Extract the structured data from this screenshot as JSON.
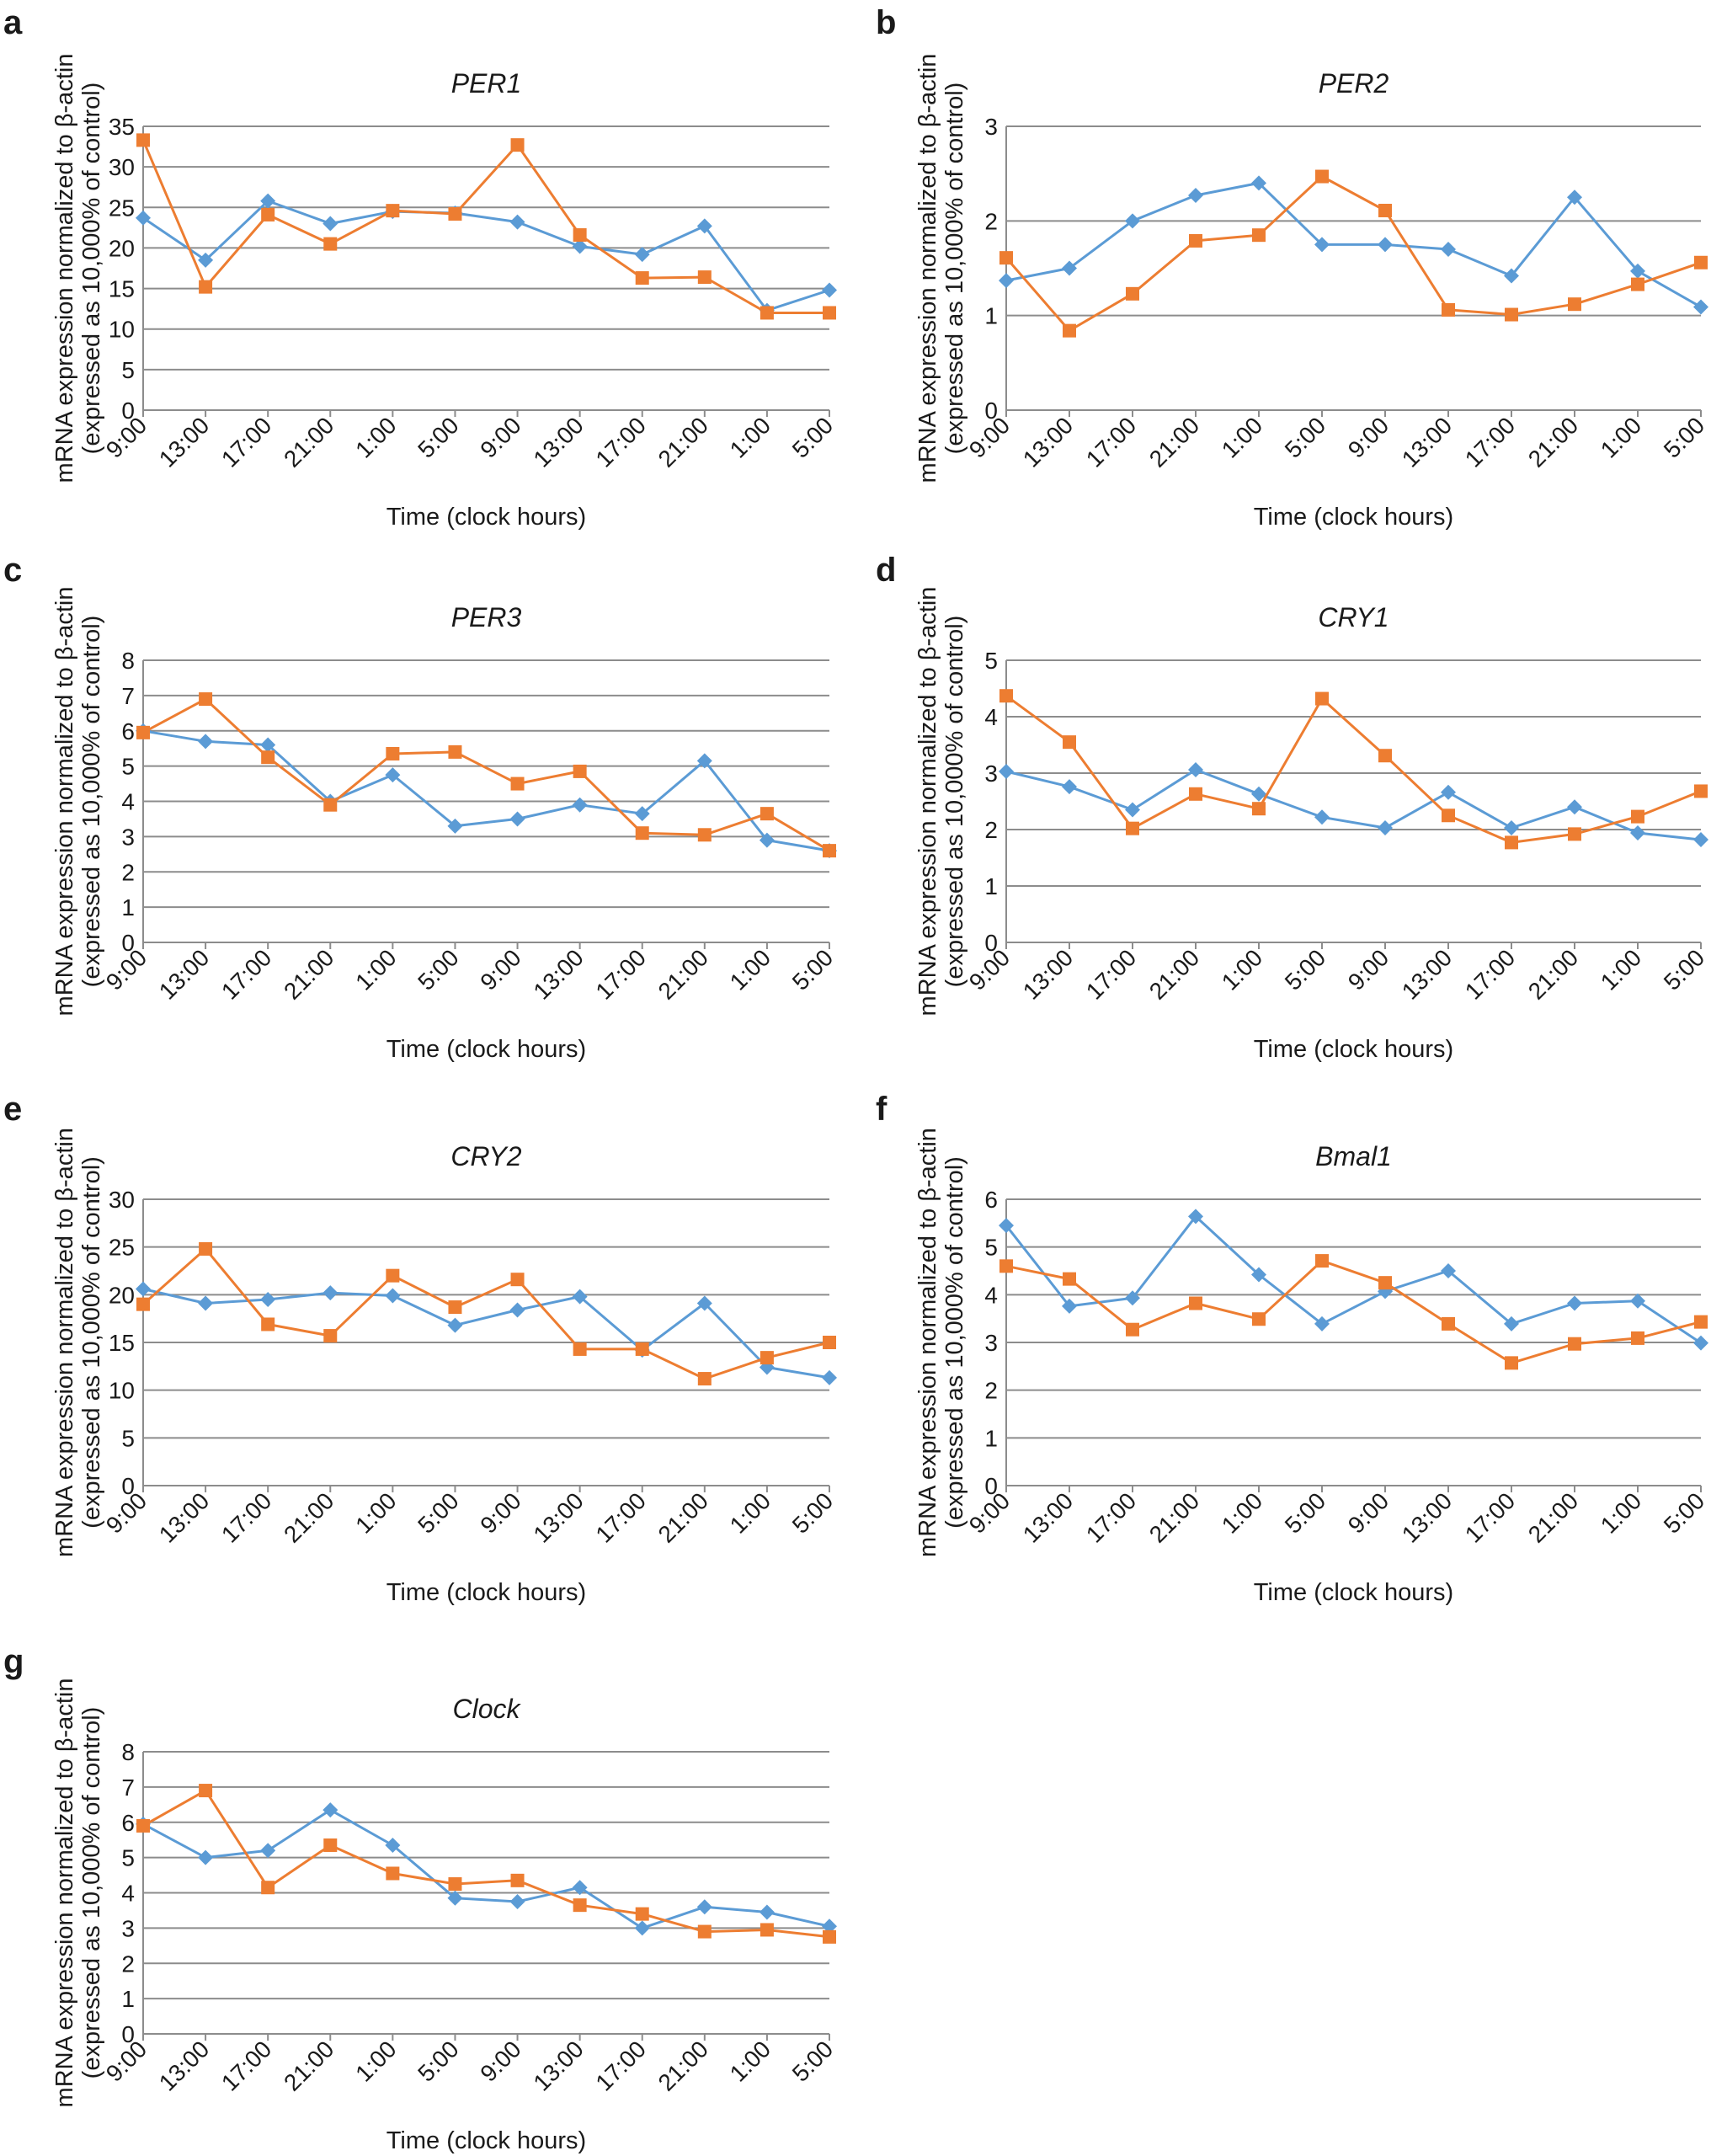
{
  "series_styles": {
    "blue": {
      "color": "#5b9bd5",
      "marker": "diamond"
    },
    "orange": {
      "color": "#ed7d31",
      "marker": "square"
    }
  },
  "chart_data": [
    {
      "panel": "a",
      "type": "line",
      "title": "PER1",
      "xlabel": "Time (clock hours)",
      "ylabel_line1": "mRNA expression normalized to β-actin",
      "ylabel_line2": "(expressed as 10,000% of control)",
      "ylim": [
        0,
        35
      ],
      "yticks": [
        0,
        5,
        10,
        15,
        20,
        25,
        30,
        35
      ],
      "categories": [
        "9:00",
        "13:00",
        "17:00",
        "21:00",
        "1:00",
        "5:00",
        "9:00",
        "13:00",
        "17:00",
        "21:00",
        "1:00",
        "5:00"
      ],
      "series": [
        {
          "name": "blue",
          "values": [
            23.7,
            18.5,
            25.8,
            23.0,
            24.5,
            24.3,
            23.2,
            20.2,
            19.2,
            22.7,
            12.3,
            14.8
          ]
        },
        {
          "name": "orange",
          "values": [
            33.3,
            15.2,
            24.1,
            20.5,
            24.6,
            24.2,
            32.7,
            21.6,
            16.3,
            16.4,
            12.0,
            12.0
          ]
        }
      ]
    },
    {
      "panel": "b",
      "type": "line",
      "title": "PER2",
      "xlabel": "Time (clock hours)",
      "ylabel_line1": "mRNA expression normalized to β-actin",
      "ylabel_line2": "(expressed as 10,000% of control)",
      "ylim": [
        0,
        3
      ],
      "yticks": [
        0,
        1,
        2,
        3
      ],
      "categories": [
        "9:00",
        "13:00",
        "17:00",
        "21:00",
        "1:00",
        "5:00",
        "9:00",
        "13:00",
        "17:00",
        "21:00",
        "1:00",
        "5:00"
      ],
      "series": [
        {
          "name": "blue",
          "values": [
            1.37,
            1.5,
            2.0,
            2.27,
            2.4,
            1.75,
            1.75,
            1.7,
            1.42,
            2.25,
            1.47,
            1.09
          ]
        },
        {
          "name": "orange",
          "values": [
            1.61,
            0.84,
            1.23,
            1.79,
            1.85,
            2.47,
            2.11,
            1.06,
            1.01,
            1.12,
            1.33,
            1.56
          ]
        }
      ]
    },
    {
      "panel": "c",
      "type": "line",
      "title": "PER3",
      "xlabel": "Time (clock hours)",
      "ylabel_line1": "mRNA expression normalized to β-actin",
      "ylabel_line2": "(expressed as 10,000% of control)",
      "ylim": [
        0,
        8
      ],
      "yticks": [
        0,
        1,
        2,
        3,
        4,
        5,
        6,
        7,
        8
      ],
      "categories": [
        "9:00",
        "13:00",
        "17:00",
        "21:00",
        "1:00",
        "5:00",
        "9:00",
        "13:00",
        "17:00",
        "21:00",
        "1:00",
        "5:00"
      ],
      "series": [
        {
          "name": "blue",
          "values": [
            6.0,
            5.7,
            5.6,
            4.0,
            4.75,
            3.3,
            3.5,
            3.9,
            3.65,
            5.15,
            2.9,
            2.6
          ]
        },
        {
          "name": "orange",
          "values": [
            5.95,
            6.9,
            5.25,
            3.9,
            5.35,
            5.4,
            4.5,
            4.85,
            3.1,
            3.05,
            3.65,
            2.6
          ]
        }
      ]
    },
    {
      "panel": "d",
      "type": "line",
      "title": "CRY1",
      "xlabel": "Time (clock hours)",
      "ylabel_line1": "mRNA expression normalized to β-actin",
      "ylabel_line2": "(expressed as 10,000% of control)",
      "ylim": [
        0,
        5
      ],
      "yticks": [
        0,
        1,
        2,
        3,
        4,
        5
      ],
      "categories": [
        "9:00",
        "13:00",
        "17:00",
        "21:00",
        "1:00",
        "5:00",
        "9:00",
        "13:00",
        "17:00",
        "21:00",
        "1:00",
        "5:00"
      ],
      "series": [
        {
          "name": "blue",
          "values": [
            3.03,
            2.76,
            2.35,
            3.06,
            2.63,
            2.22,
            2.03,
            2.66,
            2.03,
            2.4,
            1.94,
            1.82
          ]
        },
        {
          "name": "orange",
          "values": [
            4.37,
            3.55,
            2.02,
            2.63,
            2.37,
            4.32,
            3.31,
            2.25,
            1.77,
            1.92,
            2.23,
            2.68
          ]
        }
      ]
    },
    {
      "panel": "e",
      "type": "line",
      "title": "CRY2",
      "xlabel": "Time (clock hours)",
      "ylabel_line1": "mRNA expression normalized to β-actin",
      "ylabel_line2": "(expressed as 10,000% of control)",
      "ylim": [
        0,
        30
      ],
      "yticks": [
        0,
        5,
        10,
        15,
        20,
        25,
        30
      ],
      "categories": [
        "9:00",
        "13:00",
        "17:00",
        "21:00",
        "1:00",
        "5:00",
        "9:00",
        "13:00",
        "17:00",
        "21:00",
        "1:00",
        "5:00"
      ],
      "series": [
        {
          "name": "blue",
          "values": [
            20.6,
            19.1,
            19.5,
            20.2,
            19.9,
            16.8,
            18.4,
            19.8,
            14.2,
            19.1,
            12.4,
            11.3
          ]
        },
        {
          "name": "orange",
          "values": [
            19.0,
            24.8,
            16.9,
            15.7,
            22.0,
            18.7,
            21.6,
            14.3,
            14.3,
            11.2,
            13.4,
            15.0
          ]
        }
      ]
    },
    {
      "panel": "f",
      "type": "line",
      "title": "Bmal1",
      "xlabel": "Time (clock hours)",
      "ylabel_line1": "mRNA expression normalized to β-actin",
      "ylabel_line2": "(expressed as 10,000% of control)",
      "ylim": [
        0,
        6
      ],
      "yticks": [
        0,
        1,
        2,
        3,
        4,
        5,
        6
      ],
      "categories": [
        "9:00",
        "13:00",
        "17:00",
        "21:00",
        "1:00",
        "5:00",
        "9:00",
        "13:00",
        "17:00",
        "21:00",
        "1:00",
        "5:00"
      ],
      "series": [
        {
          "name": "blue",
          "values": [
            5.45,
            3.76,
            3.93,
            5.64,
            4.42,
            3.39,
            4.07,
            4.5,
            3.39,
            3.82,
            3.87,
            2.99
          ]
        },
        {
          "name": "orange",
          "values": [
            4.6,
            4.33,
            3.27,
            3.82,
            3.49,
            4.71,
            4.25,
            3.39,
            2.57,
            2.97,
            3.09,
            3.43
          ]
        }
      ]
    },
    {
      "panel": "g",
      "type": "line",
      "title": "Clock",
      "xlabel": "Time (clock hours)",
      "ylabel_line1": "mRNA expression normalized to β-actin",
      "ylabel_line2": "(expressed as 10,000% of control)",
      "ylim": [
        0,
        8
      ],
      "yticks": [
        0,
        1,
        2,
        3,
        4,
        5,
        6,
        7,
        8
      ],
      "categories": [
        "9:00",
        "13:00",
        "17:00",
        "21:00",
        "1:00",
        "5:00",
        "9:00",
        "13:00",
        "17:00",
        "21:00",
        "1:00",
        "5:00"
      ],
      "series": [
        {
          "name": "blue",
          "values": [
            5.95,
            5.0,
            5.2,
            6.35,
            5.35,
            3.85,
            3.75,
            4.15,
            3.0,
            3.6,
            3.45,
            3.05
          ]
        },
        {
          "name": "orange",
          "values": [
            5.9,
            6.9,
            4.15,
            5.35,
            4.55,
            4.25,
            4.35,
            3.65,
            3.4,
            2.9,
            2.95,
            2.75
          ]
        }
      ]
    }
  ]
}
